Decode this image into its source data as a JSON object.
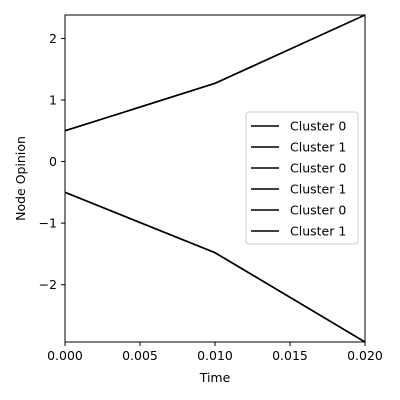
{
  "chart_data": {
    "type": "line",
    "xlabel": "Time",
    "ylabel": "Node Opinion",
    "xlim": [
      0,
      0.02
    ],
    "ylim": [
      -2.93,
      2.38
    ],
    "xticks": [
      0.0,
      0.005,
      0.01,
      0.015,
      0.02
    ],
    "xtick_labels": [
      "0.000",
      "0.005",
      "0.010",
      "0.015",
      "0.020"
    ],
    "yticks": [
      -2,
      -1,
      0,
      1,
      2
    ],
    "ytick_labels": [
      "−2",
      "−1",
      "0",
      "1",
      "2"
    ],
    "grid": false,
    "legend_position": "center-right",
    "series": [
      {
        "name": "Cluster 0",
        "color": "#000000",
        "x": [
          0,
          0.01,
          0.02
        ],
        "y": [
          0.5,
          1.27,
          2.38
        ]
      },
      {
        "name": "Cluster 1",
        "color": "#000000",
        "x": [
          0,
          0.01,
          0.02
        ],
        "y": [
          -0.5,
          -1.48,
          -2.93
        ]
      },
      {
        "name": "Cluster 0",
        "color": "#000000",
        "x": [
          0,
          0.01,
          0.02
        ],
        "y": [
          0.5,
          1.27,
          2.38
        ]
      },
      {
        "name": "Cluster 1",
        "color": "#000000",
        "x": [
          0,
          0.01,
          0.02
        ],
        "y": [
          -0.5,
          -1.48,
          -2.93
        ]
      },
      {
        "name": "Cluster 0",
        "color": "#000000",
        "x": [
          0,
          0.01,
          0.02
        ],
        "y": [
          0.5,
          1.27,
          2.38
        ]
      },
      {
        "name": "Cluster 1",
        "color": "#000000",
        "x": [
          0,
          0.01,
          0.02
        ],
        "y": [
          -0.5,
          -1.48,
          -2.93
        ]
      }
    ]
  }
}
